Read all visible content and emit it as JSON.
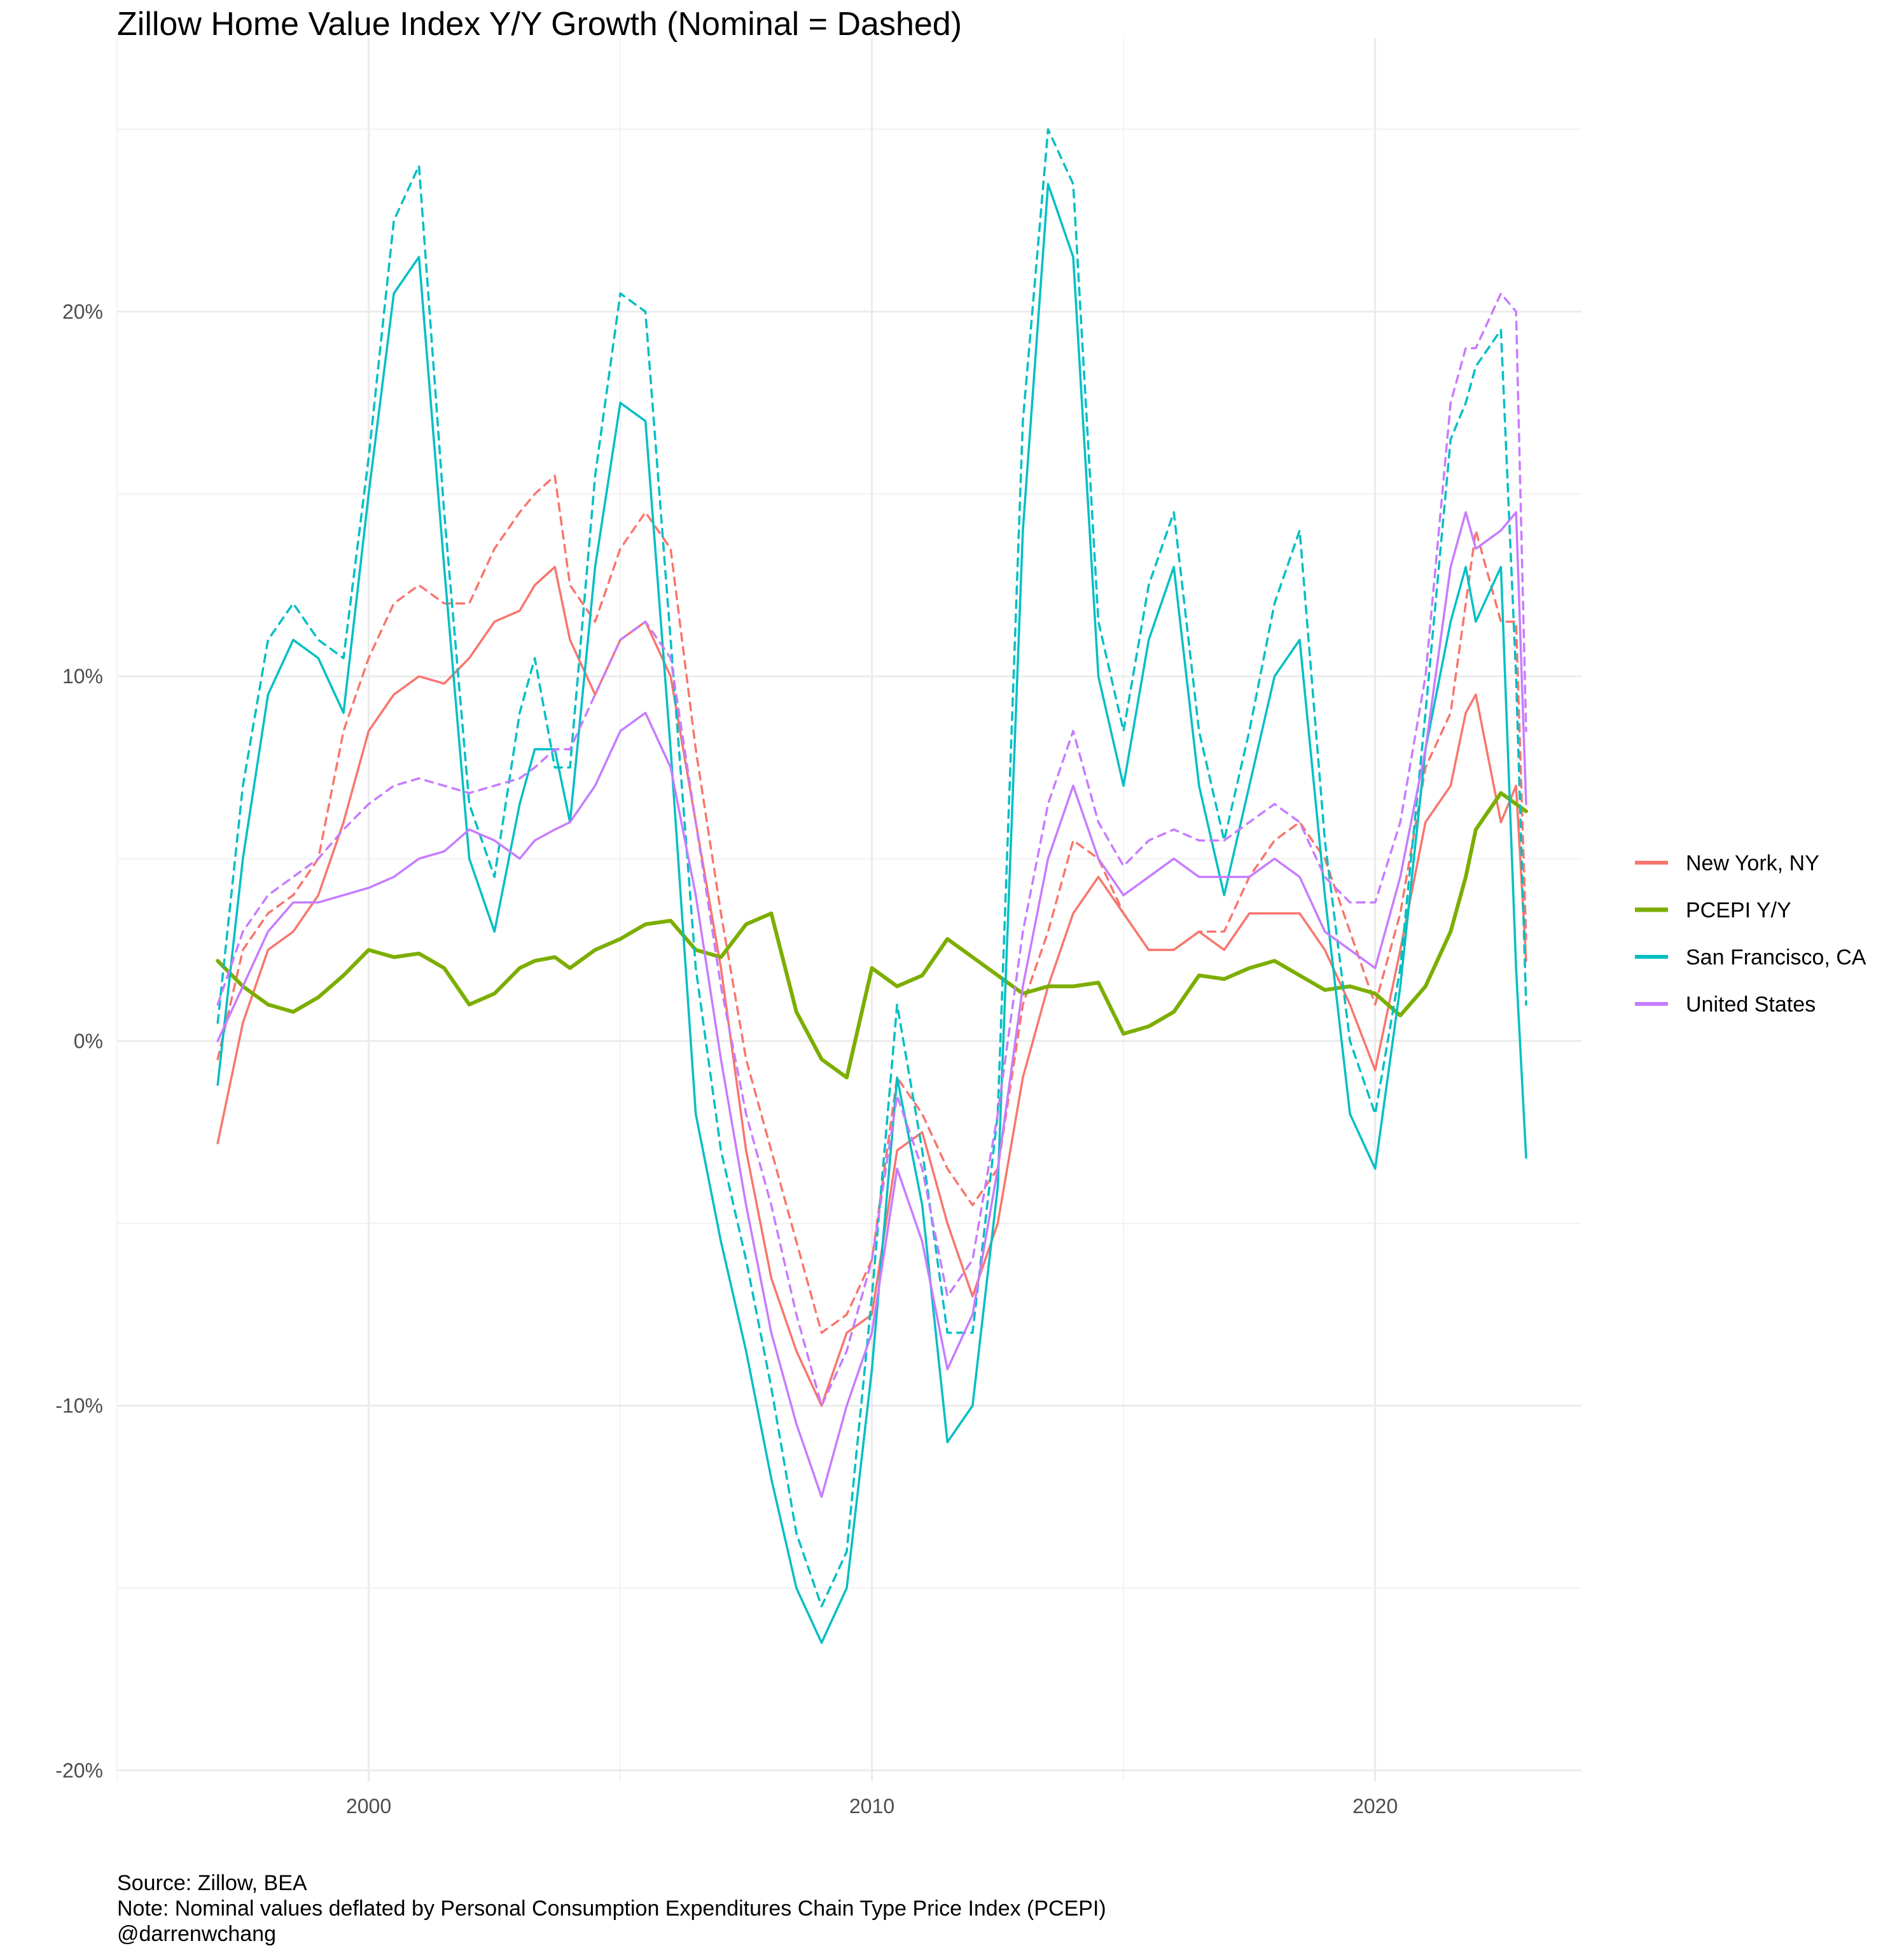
{
  "chart_data": {
    "type": "line",
    "title": "Zillow Home Value Index Y/Y Growth (Nominal = Dashed)",
    "xlabel": "",
    "ylabel": "",
    "xlim": [
      1995,
      2024.1
    ],
    "ylim": [
      -20.3,
      27.5
    ],
    "x_ticks": [
      2000,
      2010,
      2020
    ],
    "x_tick_labels": [
      "2000",
      "2010",
      "2020"
    ],
    "y_ticks": [
      -20,
      -10,
      0,
      10,
      20
    ],
    "y_tick_labels": [
      "-20%",
      "-10%",
      "0%",
      "10%",
      "20%"
    ],
    "grid": true,
    "legend_position": "right",
    "caption_lines": [
      "Source: Zillow, BEA",
      "Note: Nominal values deflated by Personal Consumption Expenditures Chain Type Price Index (PCEPI)",
      "@darrenwchang"
    ],
    "legend": [
      {
        "name": "New York, NY",
        "color": "#F8766D"
      },
      {
        "name": "PCEPI Y/Y",
        "color": "#7CAE00"
      },
      {
        "name": "San Francisco, CA",
        "color": "#00BFC4"
      },
      {
        "name": "United States",
        "color": "#C77CFF"
      }
    ],
    "series": [
      {
        "legend_index": 0,
        "style": "solid",
        "color": "#F8766D",
        "x": [
          1997.0,
          1997.5,
          1998.0,
          1998.5,
          1999.0,
          1999.5,
          2000.0,
          2000.5,
          2001.0,
          2001.5,
          2002.0,
          2002.5,
          2003.0,
          2003.3,
          2003.7,
          2004.0,
          2004.5,
          2005.0,
          2005.5,
          2006.0,
          2006.5,
          2007.0,
          2007.5,
          2008.0,
          2008.5,
          2009.0,
          2009.5,
          2010.0,
          2010.5,
          2011.0,
          2011.5,
          2012.0,
          2012.5,
          2013.0,
          2013.5,
          2014.0,
          2014.5,
          2015.0,
          2015.5,
          2016.0,
          2016.5,
          2017.0,
          2017.5,
          2018.0,
          2018.5,
          2019.0,
          2019.5,
          2020.0,
          2020.5,
          2021.0,
          2021.5,
          2021.8,
          2022.0,
          2022.5,
          2022.8,
          2023.0
        ],
        "y": [
          -2.8,
          0.5,
          2.5,
          3.0,
          4.0,
          6.0,
          8.5,
          9.5,
          10.0,
          9.8,
          10.5,
          11.5,
          11.8,
          12.5,
          13.0,
          11.0,
          9.5,
          11.0,
          11.5,
          10.0,
          6.0,
          2.0,
          -3.0,
          -6.5,
          -8.5,
          -10.0,
          -8.0,
          -7.5,
          -3.0,
          -2.5,
          -5.0,
          -7.0,
          -5.0,
          -1.0,
          1.5,
          3.5,
          4.5,
          3.5,
          2.5,
          2.5,
          3.0,
          2.5,
          3.5,
          3.5,
          3.5,
          2.5,
          1.0,
          -0.8,
          2.5,
          6.0,
          7.0,
          9.0,
          9.5,
          6.0,
          7.0,
          2.2
        ]
      },
      {
        "legend_index": 0,
        "style": "dashed",
        "color": "#F8766D",
        "x": [
          1997.0,
          1997.5,
          1998.0,
          1998.5,
          1999.0,
          1999.5,
          2000.0,
          2000.5,
          2001.0,
          2001.5,
          2002.0,
          2002.5,
          2003.0,
          2003.3,
          2003.7,
          2004.0,
          2004.5,
          2005.0,
          2005.5,
          2006.0,
          2006.5,
          2007.0,
          2007.5,
          2008.0,
          2008.5,
          2009.0,
          2009.5,
          2010.0,
          2010.5,
          2011.0,
          2011.5,
          2012.0,
          2012.5,
          2013.0,
          2013.5,
          2014.0,
          2014.5,
          2015.0,
          2015.5,
          2016.0,
          2016.5,
          2017.0,
          2017.5,
          2018.0,
          2018.5,
          2019.0,
          2019.5,
          2020.0,
          2020.5,
          2021.0,
          2021.5,
          2021.8,
          2022.0,
          2022.5,
          2022.8,
          2023.0
        ],
        "y": [
          -0.5,
          2.5,
          3.5,
          4.0,
          5.0,
          8.5,
          10.5,
          12.0,
          12.5,
          12.0,
          12.0,
          13.5,
          14.5,
          15.0,
          15.5,
          12.5,
          11.5,
          13.5,
          14.5,
          13.5,
          8.0,
          3.5,
          -0.5,
          -3.0,
          -5.5,
          -8.0,
          -7.5,
          -6.0,
          -1.0,
          -2.0,
          -3.5,
          -4.5,
          -3.5,
          1.0,
          3.0,
          5.5,
          5.0,
          3.5,
          2.5,
          2.5,
          3.0,
          3.0,
          4.5,
          5.5,
          6.0,
          5.0,
          3.0,
          1.0,
          3.5,
          7.5,
          9.0,
          12.0,
          14.0,
          11.5,
          11.5,
          2.8
        ]
      },
      {
        "legend_index": 1,
        "style": "solid",
        "color": "#7CAE00",
        "x": [
          1997.0,
          1997.5,
          1998.0,
          1998.5,
          1999.0,
          1999.5,
          2000.0,
          2000.5,
          2001.0,
          2001.5,
          2002.0,
          2002.5,
          2003.0,
          2003.3,
          2003.7,
          2004.0,
          2004.5,
          2005.0,
          2005.5,
          2006.0,
          2006.5,
          2007.0,
          2007.5,
          2008.0,
          2008.5,
          2009.0,
          2009.5,
          2010.0,
          2010.5,
          2011.0,
          2011.5,
          2012.0,
          2012.5,
          2013.0,
          2013.5,
          2014.0,
          2014.5,
          2015.0,
          2015.5,
          2016.0,
          2016.5,
          2017.0,
          2017.5,
          2018.0,
          2018.5,
          2019.0,
          2019.5,
          2020.0,
          2020.5,
          2021.0,
          2021.5,
          2021.8,
          2022.0,
          2022.5,
          2022.8,
          2023.0
        ],
        "y": [
          2.2,
          1.5,
          1.0,
          0.8,
          1.2,
          1.8,
          2.5,
          2.3,
          2.4,
          2.0,
          1.0,
          1.3,
          2.0,
          2.2,
          2.3,
          2.0,
          2.5,
          2.8,
          3.2,
          3.3,
          2.5,
          2.3,
          3.2,
          3.5,
          0.8,
          -0.5,
          -1.0,
          2.0,
          1.5,
          1.8,
          2.8,
          2.3,
          1.8,
          1.3,
          1.5,
          1.5,
          1.6,
          0.2,
          0.4,
          0.8,
          1.8,
          1.7,
          2.0,
          2.2,
          1.8,
          1.4,
          1.5,
          1.3,
          0.7,
          1.5,
          3.0,
          4.5,
          5.8,
          6.8,
          6.5,
          6.3
        ]
      },
      {
        "legend_index": 2,
        "style": "solid",
        "color": "#00BFC4",
        "x": [
          1997.0,
          1997.5,
          1998.0,
          1998.5,
          1999.0,
          1999.5,
          2000.0,
          2000.5,
          2001.0,
          2001.5,
          2002.0,
          2002.5,
          2003.0,
          2003.3,
          2003.7,
          2004.0,
          2004.5,
          2005.0,
          2005.5,
          2006.0,
          2006.5,
          2007.0,
          2007.5,
          2008.0,
          2008.5,
          2009.0,
          2009.5,
          2010.0,
          2010.5,
          2011.0,
          2011.5,
          2012.0,
          2012.5,
          2013.0,
          2013.5,
          2014.0,
          2014.5,
          2015.0,
          2015.5,
          2016.0,
          2016.5,
          2017.0,
          2017.5,
          2018.0,
          2018.5,
          2019.0,
          2019.5,
          2020.0,
          2020.5,
          2021.0,
          2021.5,
          2021.8,
          2022.0,
          2022.5,
          2022.8,
          2023.0
        ],
        "y": [
          -1.2,
          5.0,
          9.5,
          11.0,
          10.5,
          9.0,
          15.0,
          20.5,
          21.5,
          13.0,
          5.0,
          3.0,
          6.5,
          8.0,
          8.0,
          6.0,
          13.0,
          17.5,
          17.0,
          8.0,
          -2.0,
          -5.5,
          -8.5,
          -12.0,
          -15.0,
          -16.5,
          -15.0,
          -9.0,
          -1.0,
          -4.5,
          -11.0,
          -10.0,
          -4.0,
          14.0,
          23.5,
          21.5,
          10.0,
          7.0,
          11.0,
          13.0,
          7.0,
          4.0,
          7.0,
          10.0,
          11.0,
          4.0,
          -2.0,
          -3.5,
          1.5,
          8.0,
          11.5,
          13.0,
          11.5,
          13.0,
          2.0,
          -3.2
        ]
      },
      {
        "legend_index": 2,
        "style": "dashed",
        "color": "#00BFC4",
        "x": [
          1997.0,
          1997.5,
          1998.0,
          1998.5,
          1999.0,
          1999.5,
          2000.0,
          2000.5,
          2001.0,
          2001.5,
          2002.0,
          2002.5,
          2003.0,
          2003.3,
          2003.7,
          2004.0,
          2004.5,
          2005.0,
          2005.5,
          2006.0,
          2006.5,
          2007.0,
          2007.5,
          2008.0,
          2008.5,
          2009.0,
          2009.5,
          2010.0,
          2010.5,
          2011.0,
          2011.5,
          2012.0,
          2012.5,
          2013.0,
          2013.5,
          2014.0,
          2014.5,
          2015.0,
          2015.5,
          2016.0,
          2016.5,
          2017.0,
          2017.5,
          2018.0,
          2018.5,
          2019.0,
          2019.5,
          2020.0,
          2020.5,
          2021.0,
          2021.5,
          2021.8,
          2022.0,
          2022.5,
          2022.8,
          2023.0
        ],
        "y": [
          0.5,
          7.0,
          11.0,
          12.0,
          11.0,
          10.5,
          16.0,
          22.5,
          24.0,
          14.5,
          6.5,
          4.5,
          9.0,
          10.5,
          7.5,
          7.5,
          15.5,
          20.5,
          20.0,
          11.0,
          2.0,
          -3.0,
          -6.0,
          -9.5,
          -13.5,
          -15.5,
          -14.0,
          -7.0,
          1.0,
          -3.0,
          -8.0,
          -8.0,
          -2.0,
          17.0,
          25.0,
          23.5,
          11.5,
          8.5,
          12.5,
          14.5,
          8.5,
          5.5,
          8.5,
          12.0,
          14.0,
          5.5,
          0.0,
          -2.0,
          2.0,
          9.0,
          16.5,
          17.5,
          18.5,
          19.5,
          10.0,
          1.0
        ]
      },
      {
        "legend_index": 3,
        "style": "solid",
        "color": "#C77CFF",
        "x": [
          1997.0,
          1997.5,
          1998.0,
          1998.5,
          1999.0,
          1999.5,
          2000.0,
          2000.5,
          2001.0,
          2001.5,
          2002.0,
          2002.5,
          2003.0,
          2003.3,
          2003.7,
          2004.0,
          2004.5,
          2005.0,
          2005.5,
          2006.0,
          2006.5,
          2007.0,
          2007.5,
          2008.0,
          2008.5,
          2009.0,
          2009.5,
          2010.0,
          2010.5,
          2011.0,
          2011.5,
          2012.0,
          2012.5,
          2013.0,
          2013.5,
          2014.0,
          2014.5,
          2015.0,
          2015.5,
          2016.0,
          2016.5,
          2017.0,
          2017.5,
          2018.0,
          2018.5,
          2019.0,
          2019.5,
          2020.0,
          2020.5,
          2021.0,
          2021.5,
          2021.8,
          2022.0,
          2022.5,
          2022.8,
          2023.0
        ],
        "y": [
          0.0,
          1.5,
          3.0,
          3.8,
          3.8,
          4.0,
          4.2,
          4.5,
          5.0,
          5.2,
          5.8,
          5.5,
          5.0,
          5.5,
          5.8,
          6.0,
          7.0,
          8.5,
          9.0,
          7.5,
          4.0,
          -0.5,
          -4.5,
          -8.0,
          -10.5,
          -12.5,
          -10.0,
          -8.0,
          -3.5,
          -5.5,
          -9.0,
          -7.5,
          -3.5,
          1.5,
          5.0,
          7.0,
          5.0,
          4.0,
          4.5,
          5.0,
          4.5,
          4.5,
          4.5,
          5.0,
          4.5,
          3.0,
          2.5,
          2.0,
          4.5,
          8.0,
          13.0,
          14.5,
          13.5,
          14.0,
          14.5,
          6.5
        ]
      },
      {
        "legend_index": 3,
        "style": "dashed",
        "color": "#C77CFF",
        "x": [
          1997.0,
          1997.5,
          1998.0,
          1998.5,
          1999.0,
          1999.5,
          2000.0,
          2000.5,
          2001.0,
          2001.5,
          2002.0,
          2002.5,
          2003.0,
          2003.3,
          2003.7,
          2004.0,
          2004.5,
          2005.0,
          2005.5,
          2006.0,
          2006.5,
          2007.0,
          2007.5,
          2008.0,
          2008.5,
          2009.0,
          2009.5,
          2010.0,
          2010.5,
          2011.0,
          2011.5,
          2012.0,
          2012.5,
          2013.0,
          2013.5,
          2014.0,
          2014.5,
          2015.0,
          2015.5,
          2016.0,
          2016.5,
          2017.0,
          2017.5,
          2018.0,
          2018.5,
          2019.0,
          2019.5,
          2020.0,
          2020.5,
          2021.0,
          2021.5,
          2021.8,
          2022.0,
          2022.5,
          2022.8,
          2023.0
        ],
        "y": [
          1.0,
          3.0,
          4.0,
          4.5,
          5.0,
          5.8,
          6.5,
          7.0,
          7.2,
          7.0,
          6.8,
          7.0,
          7.2,
          7.5,
          8.0,
          8.0,
          9.5,
          11.0,
          11.5,
          10.5,
          6.0,
          1.5,
          -2.0,
          -4.5,
          -7.5,
          -10.0,
          -8.5,
          -6.0,
          -1.5,
          -3.5,
          -7.0,
          -6.0,
          -2.0,
          3.0,
          6.5,
          8.5,
          6.0,
          4.8,
          5.5,
          5.8,
          5.5,
          5.5,
          6.0,
          6.5,
          6.0,
          4.5,
          3.8,
          3.8,
          6.0,
          10.0,
          17.5,
          19.0,
          19.0,
          20.5,
          20.0,
          8.5
        ]
      }
    ]
  }
}
